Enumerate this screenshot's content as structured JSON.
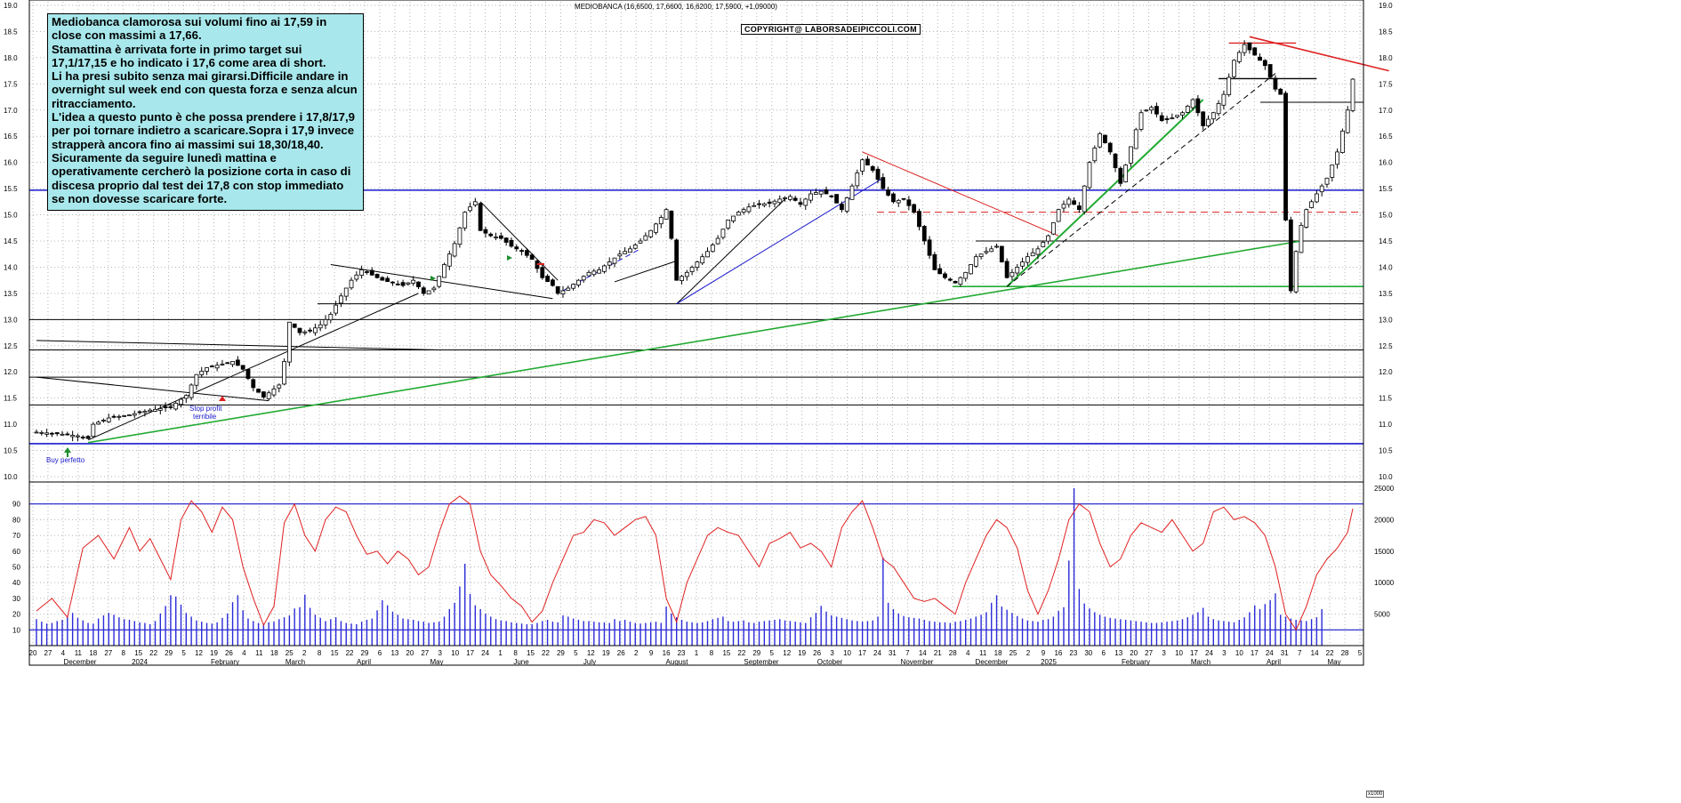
{
  "chart_title": "MEDIOBANCA (16,6500, 17,6600, 16,6200, 17,5900, +1,09000)",
  "copyright": "COPYRIGHT@ LABORSADEIPICCOLI.COM",
  "comment": [
    "Mediobanca clamorosa sui volumi fino ai 17,59 in close con massimi a 17,66.",
    "Stamattina è arrivata forte in primo target sui 17,1/17,15 e ho indicato i 17,6 come area di short.",
    "Li ha presi subito senza mai girarsi.Difficile andare in overnight sul week end con questa forza e senza alcun ritracciamento.",
    "L'idea a questo punto è che possa prendere i 17,8/17,9 per poi tornare indietro a scaricare.Sopra i 17,9 invece strapperà ancora fino ai massimi sui 18,30/18,40.",
    "Sicuramente da seguire lunedì mattina e operativamente cercherò la posizione corta in caso di discesa proprio dal test dei 17,8 con stop immediato se non dovesse scaricare forte."
  ],
  "annotations": {
    "buy": "Buy perfetto",
    "stop_line1": "Stop profit",
    "stop_line2": "terribile"
  },
  "volume_scale_label": "x1000",
  "chart_data": {
    "type": "candlestick",
    "price_axis": {
      "ylim": [
        10.0,
        19.0
      ],
      "ticks": [
        "10.0",
        "10.5",
        "11.0",
        "11.5",
        "12.0",
        "12.5",
        "13.0",
        "13.5",
        "14.0",
        "14.5",
        "15.0",
        "15.5",
        "16.0",
        "16.5",
        "17.0",
        "17.5",
        "18.0",
        "18.5",
        "19.0"
      ]
    },
    "oscillator_axis": {
      "ylim": [
        0,
        100
      ],
      "ticks": [
        "10",
        "20",
        "30",
        "40",
        "50",
        "60",
        "70",
        "80",
        "90"
      ]
    },
    "volume_axis": {
      "ylim": [
        0,
        25000
      ],
      "ticks": [
        "5000",
        "10000",
        "15000",
        "20000",
        "25000"
      ]
    },
    "x_day_labels": [
      "20",
      "27",
      "4",
      "11",
      "18",
      "27",
      "8",
      "15",
      "22",
      "29",
      "5",
      "12",
      "19",
      "26",
      "4",
      "11",
      "18",
      "25",
      "2",
      "8",
      "15",
      "22",
      "29",
      "6",
      "13",
      "20",
      "27",
      "3",
      "10",
      "17",
      "24",
      "1",
      "8",
      "15",
      "22",
      "29",
      "5",
      "12",
      "19",
      "26",
      "2",
      "9",
      "16",
      "23",
      "1",
      "8",
      "15",
      "22",
      "29",
      "5",
      "12",
      "19",
      "26",
      "3",
      "10",
      "17",
      "24",
      "31",
      "7",
      "14",
      "21",
      "28",
      "4",
      "11",
      "18",
      "25",
      "2",
      "9",
      "16",
      "23",
      "30",
      "6",
      "13",
      "20",
      "27",
      "3",
      "10",
      "17",
      "24",
      "3",
      "10",
      "17",
      "24",
      "31",
      "7",
      "14",
      "22",
      "28",
      "5"
    ],
    "x_month_labels": [
      "December",
      "2024",
      "February",
      "March",
      "April",
      "May",
      "June",
      "July",
      "August",
      "September",
      "October",
      "November",
      "December",
      "2025",
      "February",
      "March",
      "April",
      "May"
    ],
    "horizontal_levels": [
      {
        "y": 15.47,
        "color": "#1a1acc",
        "style": "solid"
      },
      {
        "y": 10.63,
        "color": "#1a1acc",
        "style": "solid"
      },
      {
        "y": 13.0,
        "color": "#000000",
        "style": "solid"
      },
      {
        "y": 12.42,
        "color": "#000000",
        "style": "solid"
      },
      {
        "y": 11.9,
        "color": "#000000",
        "style": "solid"
      },
      {
        "y": 11.37,
        "color": "#000000",
        "style": "solid"
      },
      {
        "y": 13.3,
        "color": "#000000",
        "style": "solid"
      },
      {
        "y": 14.5,
        "color": "#000000",
        "style": "solid"
      },
      {
        "y": 17.15,
        "color": "#000000",
        "style": "solid"
      },
      {
        "y": 13.63,
        "color": "#22aa33",
        "style": "solid"
      },
      {
        "y": 15.05,
        "color": "#dd2222",
        "style": "dashed"
      }
    ],
    "oscillator_levels": [
      90,
      10
    ],
    "price_path": [
      [
        0,
        10.85
      ],
      [
        4,
        10.82
      ],
      [
        8,
        10.78
      ],
      [
        10,
        10.73
      ],
      [
        11,
        11.0
      ],
      [
        14,
        11.12
      ],
      [
        18,
        11.18
      ],
      [
        22,
        11.27
      ],
      [
        26,
        11.33
      ],
      [
        29,
        11.55
      ],
      [
        31,
        11.95
      ],
      [
        33,
        12.08
      ],
      [
        36,
        12.15
      ],
      [
        38,
        12.2
      ],
      [
        40,
        12.05
      ],
      [
        42,
        11.7
      ],
      [
        44,
        11.52
      ],
      [
        45,
        11.6
      ],
      [
        47,
        11.75
      ],
      [
        48,
        12.2
      ],
      [
        49,
        12.95
      ],
      [
        51,
        12.75
      ],
      [
        53,
        12.78
      ],
      [
        55,
        12.9
      ],
      [
        57,
        13.1
      ],
      [
        59,
        13.45
      ],
      [
        61,
        13.75
      ],
      [
        63,
        13.95
      ],
      [
        65,
        13.85
      ],
      [
        67,
        13.75
      ],
      [
        69,
        13.7
      ],
      [
        71,
        13.65
      ],
      [
        73,
        13.75
      ],
      [
        75,
        13.5
      ],
      [
        77,
        13.6
      ],
      [
        79,
        14.05
      ],
      [
        81,
        14.45
      ],
      [
        83,
        15.05
      ],
      [
        85,
        15.25
      ],
      [
        86,
        14.7
      ],
      [
        88,
        14.6
      ],
      [
        90,
        14.55
      ],
      [
        92,
        14.4
      ],
      [
        94,
        14.3
      ],
      [
        96,
        14.15
      ],
      [
        98,
        13.8
      ],
      [
        100,
        13.65
      ],
      [
        101,
        13.5
      ],
      [
        103,
        13.6
      ],
      [
        105,
        13.75
      ],
      [
        107,
        13.9
      ],
      [
        109,
        13.95
      ],
      [
        111,
        14.1
      ],
      [
        113,
        14.25
      ],
      [
        115,
        14.35
      ],
      [
        117,
        14.5
      ],
      [
        119,
        14.7
      ],
      [
        121,
        14.95
      ],
      [
        122,
        15.1
      ],
      [
        123,
        14.55
      ],
      [
        124,
        13.75
      ],
      [
        126,
        13.9
      ],
      [
        128,
        14.1
      ],
      [
        130,
        14.3
      ],
      [
        132,
        14.55
      ],
      [
        134,
        14.9
      ],
      [
        136,
        15.05
      ],
      [
        138,
        15.15
      ],
      [
        140,
        15.2
      ],
      [
        142,
        15.22
      ],
      [
        144,
        15.3
      ],
      [
        146,
        15.35
      ],
      [
        148,
        15.2
      ],
      [
        150,
        15.4
      ],
      [
        152,
        15.45
      ],
      [
        154,
        15.35
      ],
      [
        156,
        15.1
      ],
      [
        158,
        15.55
      ],
      [
        160,
        16.05
      ],
      [
        162,
        15.85
      ],
      [
        164,
        15.5
      ],
      [
        166,
        15.25
      ],
      [
        168,
        15.3
      ],
      [
        170,
        15.05
      ],
      [
        172,
        14.5
      ],
      [
        174,
        13.95
      ],
      [
        176,
        13.8
      ],
      [
        178,
        13.7
      ],
      [
        180,
        13.9
      ],
      [
        182,
        14.2
      ],
      [
        184,
        14.3
      ],
      [
        186,
        14.4
      ],
      [
        188,
        13.8
      ],
      [
        190,
        14.0
      ],
      [
        192,
        14.2
      ],
      [
        194,
        14.35
      ],
      [
        196,
        14.6
      ],
      [
        198,
        15.1
      ],
      [
        200,
        15.3
      ],
      [
        202,
        15.1
      ],
      [
        204,
        16.0
      ],
      [
        206,
        16.55
      ],
      [
        208,
        16.2
      ],
      [
        210,
        15.6
      ],
      [
        212,
        16.3
      ],
      [
        214,
        16.95
      ],
      [
        216,
        17.05
      ],
      [
        218,
        16.8
      ],
      [
        220,
        16.85
      ],
      [
        222,
        16.95
      ],
      [
        224,
        17.2
      ],
      [
        226,
        16.7
      ],
      [
        228,
        16.95
      ],
      [
        230,
        17.3
      ],
      [
        232,
        17.95
      ],
      [
        234,
        18.25
      ],
      [
        236,
        18.05
      ],
      [
        238,
        17.85
      ],
      [
        240,
        17.4
      ],
      [
        241,
        17.3
      ],
      [
        242,
        14.9
      ],
      [
        243,
        13.55
      ],
      [
        244,
        14.3
      ],
      [
        245,
        14.8
      ],
      [
        246,
        15.1
      ],
      [
        248,
        15.4
      ],
      [
        250,
        15.7
      ],
      [
        252,
        16.2
      ],
      [
        254,
        17.0
      ],
      [
        255,
        17.59
      ]
    ],
    "oscillator_path": [
      [
        0,
        22
      ],
      [
        3,
        30
      ],
      [
        6,
        18
      ],
      [
        9,
        62
      ],
      [
        12,
        70
      ],
      [
        15,
        55
      ],
      [
        18,
        75
      ],
      [
        20,
        60
      ],
      [
        22,
        68
      ],
      [
        24,
        55
      ],
      [
        26,
        42
      ],
      [
        28,
        80
      ],
      [
        30,
        92
      ],
      [
        32,
        85
      ],
      [
        34,
        72
      ],
      [
        36,
        88
      ],
      [
        38,
        80
      ],
      [
        40,
        50
      ],
      [
        42,
        30
      ],
      [
        44,
        13
      ],
      [
        46,
        25
      ],
      [
        48,
        78
      ],
      [
        50,
        90
      ],
      [
        52,
        70
      ],
      [
        54,
        60
      ],
      [
        56,
        80
      ],
      [
        58,
        88
      ],
      [
        60,
        85
      ],
      [
        62,
        70
      ],
      [
        64,
        58
      ],
      [
        66,
        60
      ],
      [
        68,
        52
      ],
      [
        70,
        60
      ],
      [
        72,
        55
      ],
      [
        74,
        45
      ],
      [
        76,
        50
      ],
      [
        78,
        72
      ],
      [
        80,
        90
      ],
      [
        82,
        95
      ],
      [
        84,
        90
      ],
      [
        86,
        60
      ],
      [
        88,
        45
      ],
      [
        90,
        38
      ],
      [
        92,
        30
      ],
      [
        94,
        25
      ],
      [
        96,
        15
      ],
      [
        98,
        22
      ],
      [
        100,
        40
      ],
      [
        102,
        55
      ],
      [
        104,
        70
      ],
      [
        106,
        72
      ],
      [
        108,
        80
      ],
      [
        110,
        78
      ],
      [
        112,
        70
      ],
      [
        114,
        75
      ],
      [
        116,
        80
      ],
      [
        118,
        82
      ],
      [
        120,
        70
      ],
      [
        122,
        30
      ],
      [
        124,
        15
      ],
      [
        126,
        40
      ],
      [
        128,
        55
      ],
      [
        130,
        70
      ],
      [
        132,
        75
      ],
      [
        134,
        72
      ],
      [
        136,
        70
      ],
      [
        138,
        60
      ],
      [
        140,
        50
      ],
      [
        142,
        65
      ],
      [
        144,
        68
      ],
      [
        146,
        72
      ],
      [
        148,
        62
      ],
      [
        150,
        65
      ],
      [
        152,
        60
      ],
      [
        154,
        50
      ],
      [
        156,
        75
      ],
      [
        158,
        85
      ],
      [
        160,
        92
      ],
      [
        162,
        75
      ],
      [
        164,
        55
      ],
      [
        166,
        50
      ],
      [
        168,
        40
      ],
      [
        170,
        30
      ],
      [
        172,
        28
      ],
      [
        174,
        30
      ],
      [
        176,
        25
      ],
      [
        178,
        20
      ],
      [
        180,
        40
      ],
      [
        182,
        55
      ],
      [
        184,
        70
      ],
      [
        186,
        80
      ],
      [
        188,
        75
      ],
      [
        190,
        62
      ],
      [
        192,
        35
      ],
      [
        194,
        20
      ],
      [
        196,
        35
      ],
      [
        198,
        55
      ],
      [
        200,
        80
      ],
      [
        202,
        90
      ],
      [
        204,
        85
      ],
      [
        206,
        65
      ],
      [
        208,
        50
      ],
      [
        210,
        55
      ],
      [
        212,
        70
      ],
      [
        214,
        78
      ],
      [
        216,
        75
      ],
      [
        218,
        72
      ],
      [
        220,
        80
      ],
      [
        222,
        70
      ],
      [
        224,
        60
      ],
      [
        226,
        65
      ],
      [
        228,
        85
      ],
      [
        230,
        88
      ],
      [
        232,
        80
      ],
      [
        234,
        82
      ],
      [
        236,
        78
      ],
      [
        238,
        70
      ],
      [
        240,
        50
      ],
      [
        242,
        20
      ],
      [
        244,
        10
      ],
      [
        246,
        25
      ],
      [
        248,
        45
      ],
      [
        250,
        55
      ],
      [
        252,
        62
      ],
      [
        254,
        72
      ],
      [
        255,
        87
      ]
    ],
    "volume_bars": [
      4200,
      3800,
      3500,
      3600,
      3900,
      4100,
      4700,
      5200,
      4400,
      4000,
      3600,
      3500,
      4300,
      4800,
      5200,
      4900,
      4500,
      4200,
      4100,
      3900,
      3700,
      3600,
      3400,
      3900,
      5100,
      6300,
      8000,
      7800,
      6500,
      5200,
      4600,
      4000,
      3800,
      3600,
      3500,
      3700,
      4400,
      5100,
      6900,
      8000,
      5600,
      4300,
      3900,
      3600,
      3500,
      3700,
      3800,
      4200,
      4500,
      4800,
      5900,
      6100,
      8100,
      6000,
      4900,
      4400,
      3900,
      4200,
      4500,
      3900,
      3600,
      3500,
      3400,
      3800,
      4100,
      4300,
      5600,
      7200,
      6400,
      5400,
      4900,
      4300,
      4200,
      4100,
      3900,
      3800,
      3600,
      3700,
      3800,
      4600,
      5800,
      6800,
      9400,
      13000,
      8200,
      6400,
      5800,
      5100,
      4600,
      4200,
      4000,
      3900,
      3700,
      3600,
      3500,
      3400,
      3400,
      3600,
      3900,
      4100,
      3800,
      3700,
      4800,
      4600,
      4300,
      4100,
      3900,
      3900,
      3800,
      3700,
      3700,
      3600,
      4200,
      3900,
      4100,
      3800,
      3600,
      3500,
      3600,
      3700,
      3800,
      3600,
      6200,
      5100,
      4500,
      4100,
      3800,
      3700,
      3600,
      3700,
      3900,
      4200,
      4400,
      4600,
      3900,
      3800,
      3900,
      4000,
      3700,
      3600,
      3800,
      3900,
      4000,
      4100,
      4200,
      4000,
      3900,
      3800,
      3700,
      3600,
      4500,
      5200,
      6300,
      5400,
      4800,
      4600,
      4400,
      4200,
      4000,
      3900,
      3800,
      3900,
      4000,
      4600,
      14000,
      6800,
      5800,
      5100,
      4700,
      4500,
      4400,
      4300,
      4100,
      3900,
      3800,
      3700,
      3700,
      3600,
      3800,
      3900,
      4100,
      4300,
      4600,
      4900,
      5300,
      6800,
      8000,
      6200,
      5700,
      5200,
      4700,
      4300,
      4000,
      3900,
      3800,
      4100,
      4200,
      4600,
      5500,
      6100,
      13500,
      25000,
      9000,
      6700,
      5900,
      5300,
      4900,
      4600,
      4400,
      4300,
      4200,
      4100,
      4000,
      3900,
      3800,
      3700,
      3600,
      3600,
      3700,
      3800,
      3900,
      4000,
      4200,
      4500,
      4900,
      5300,
      6000,
      4600,
      4200,
      4000,
      3900,
      3800,
      3700,
      4100,
      4500,
      5300,
      6400,
      5800,
      6600,
      7200,
      8300,
      4900,
      4600,
      4300,
      4100,
      4000,
      3900,
      4200,
      4500,
      5800
    ]
  }
}
